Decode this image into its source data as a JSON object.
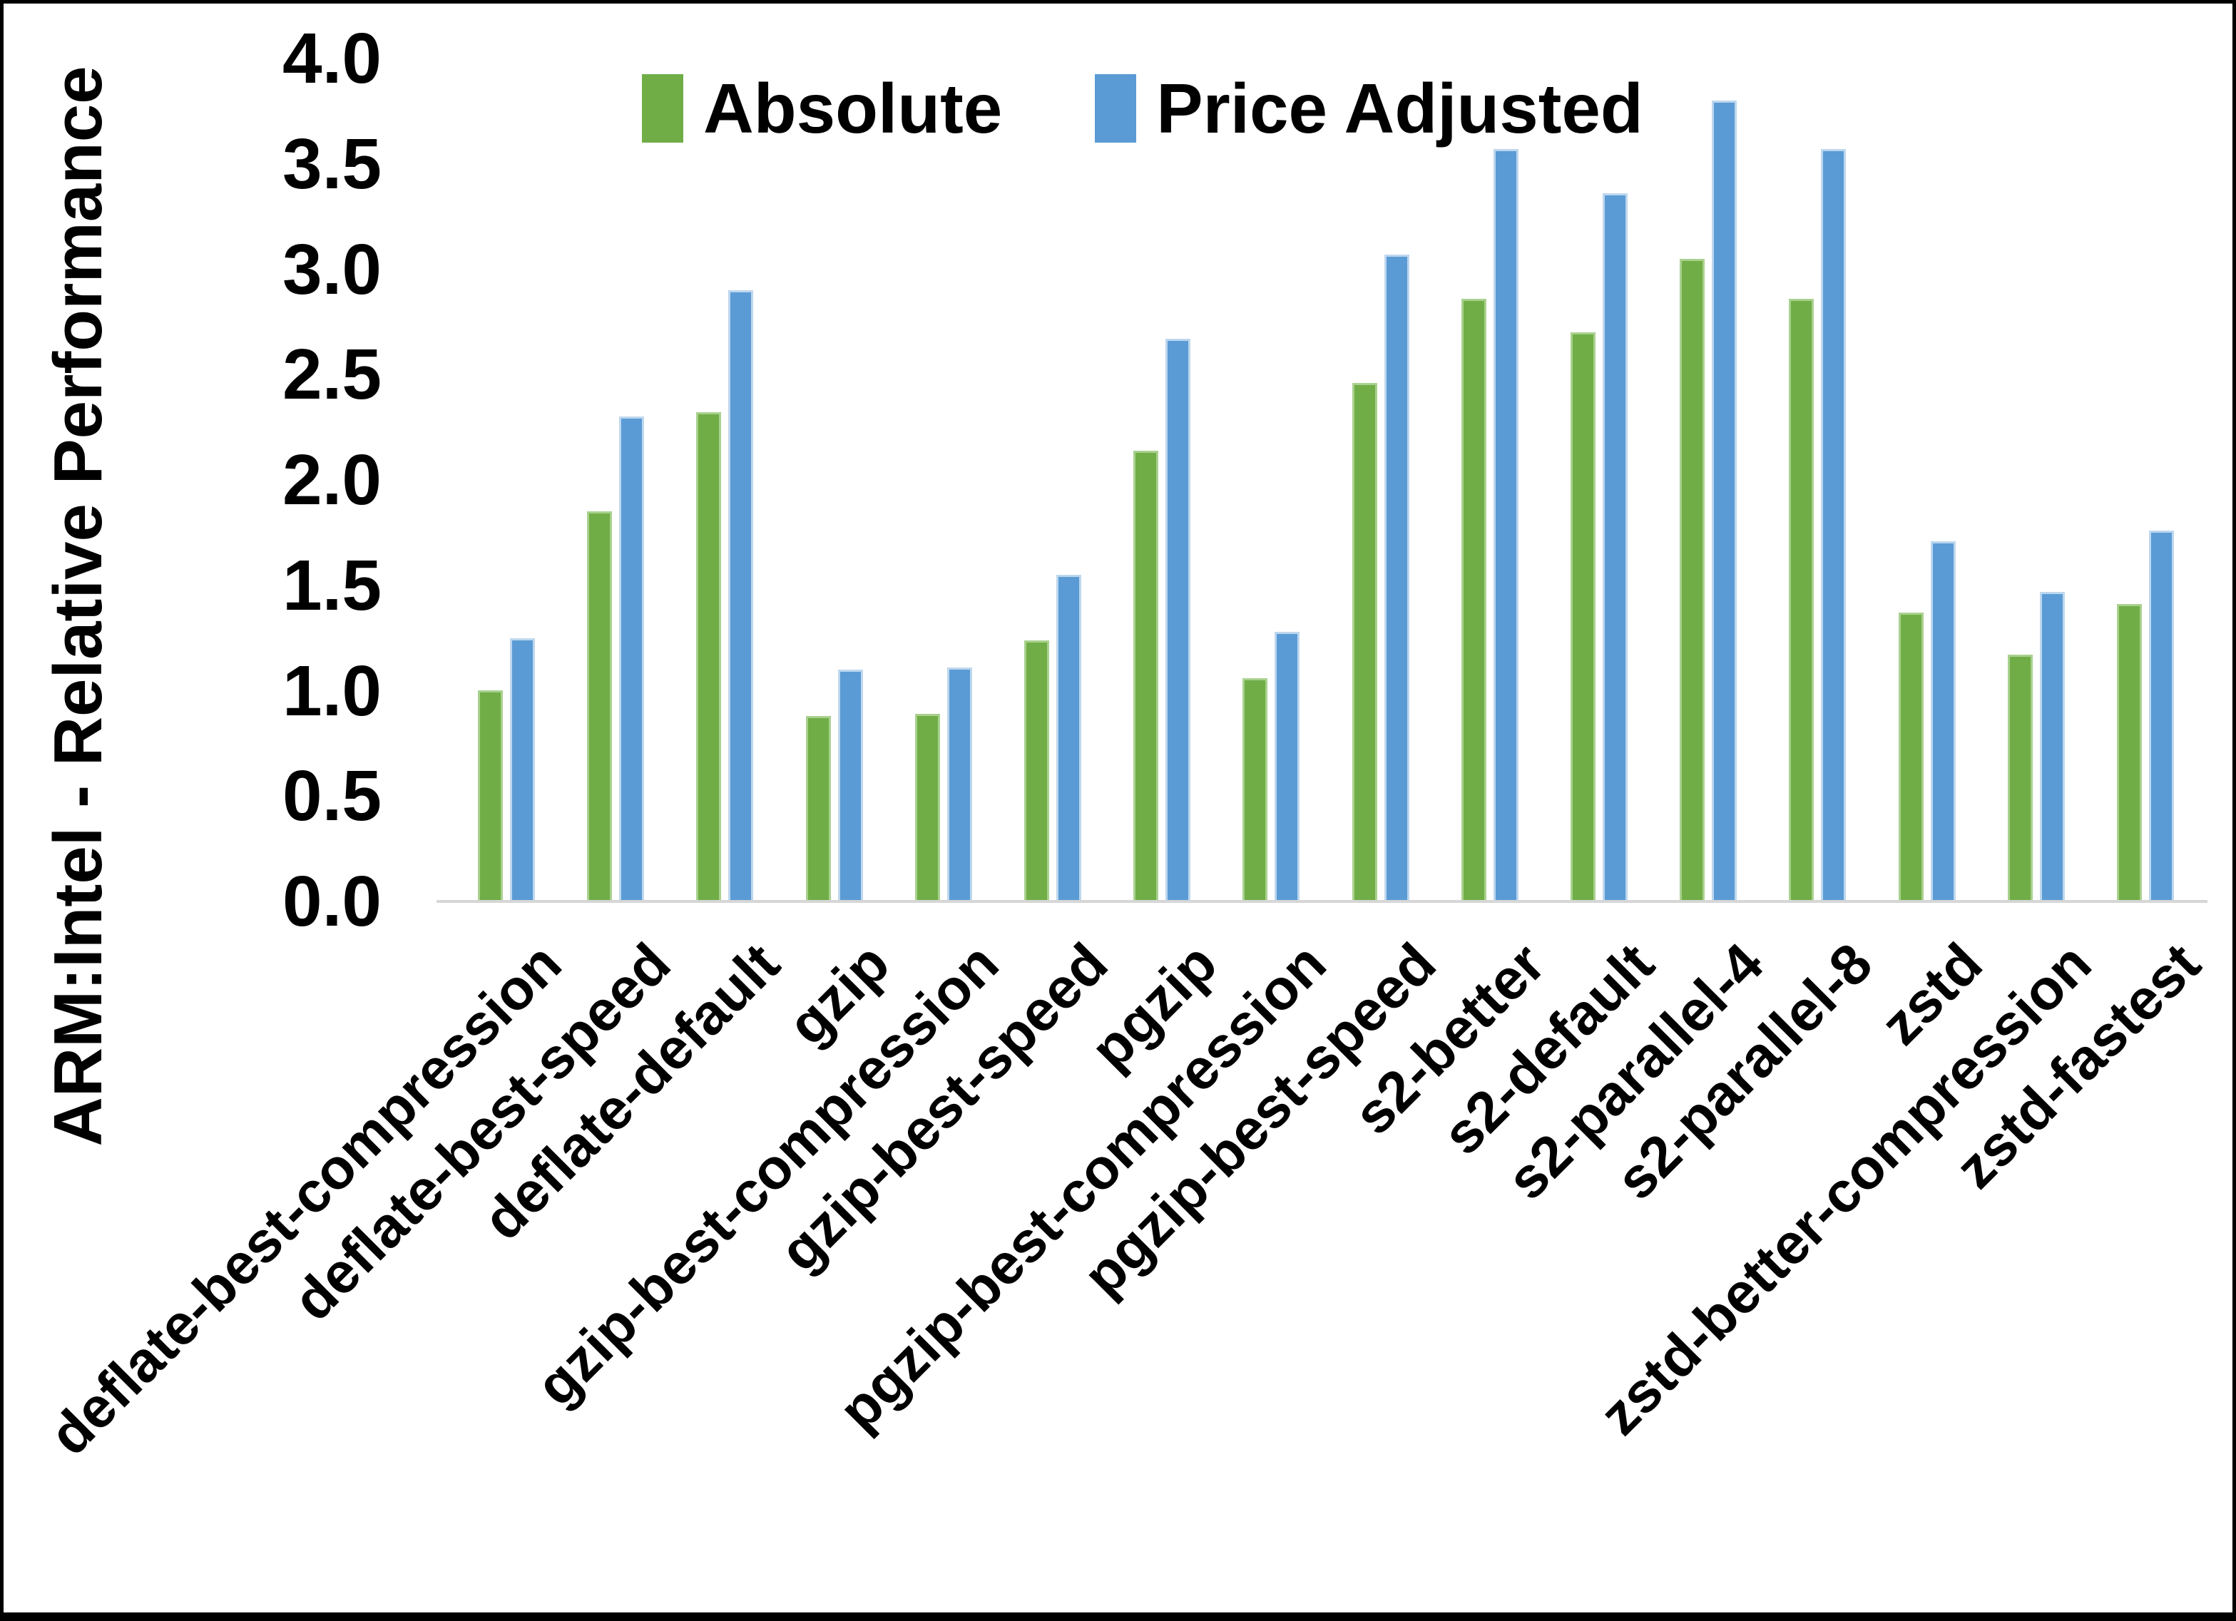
{
  "figure": {
    "background_color": "#FFFFFF",
    "frame_color": "#000000",
    "axis_line_color": "#D6D6D6",
    "text_color": "#000000"
  },
  "chart_data": {
    "type": "bar",
    "title": "",
    "xlabel": "",
    "ylabel": "ARM:Intel - Relative Performance",
    "ylim": [
      0,
      4
    ],
    "ytick_step": 0.5,
    "ytick_labels": [
      "0.0",
      "0.5",
      "1.0",
      "1.5",
      "2.0",
      "2.5",
      "3.0",
      "3.5",
      "4.0"
    ],
    "grid": false,
    "legend_position": "top-center",
    "legend_entries": [
      "Absolute",
      "Price Adjusted"
    ],
    "categories": [
      "deflate-best-compression",
      "deflate-best-speed",
      "deflate-default",
      "gzip",
      "gzip-best-compression",
      "gzip-best-speed",
      "pgzip",
      "pgzip-best-compression",
      "pgzip-best-speed",
      "s2-better",
      "s2-default",
      "s2-parallel-4",
      "s2-parallel-8",
      "zstd",
      "zstd-better-compression",
      "zstd-fastest"
    ],
    "series": [
      {
        "name": "Absolute",
        "color": "#70AD47",
        "border_color": "#A9D18E",
        "values": [
          1.0,
          1.85,
          2.32,
          0.88,
          0.89,
          1.24,
          2.14,
          1.06,
          2.46,
          2.86,
          2.7,
          3.05,
          2.86,
          1.37,
          1.17,
          1.41
        ]
      },
      {
        "name": "Price Adjusted",
        "color": "#5B9BD5",
        "border_color": "#BDD7EE",
        "values": [
          1.25,
          2.3,
          2.9,
          1.1,
          1.11,
          1.55,
          2.67,
          1.28,
          3.07,
          3.57,
          3.36,
          3.8,
          3.57,
          1.71,
          1.47,
          1.76
        ]
      }
    ]
  }
}
